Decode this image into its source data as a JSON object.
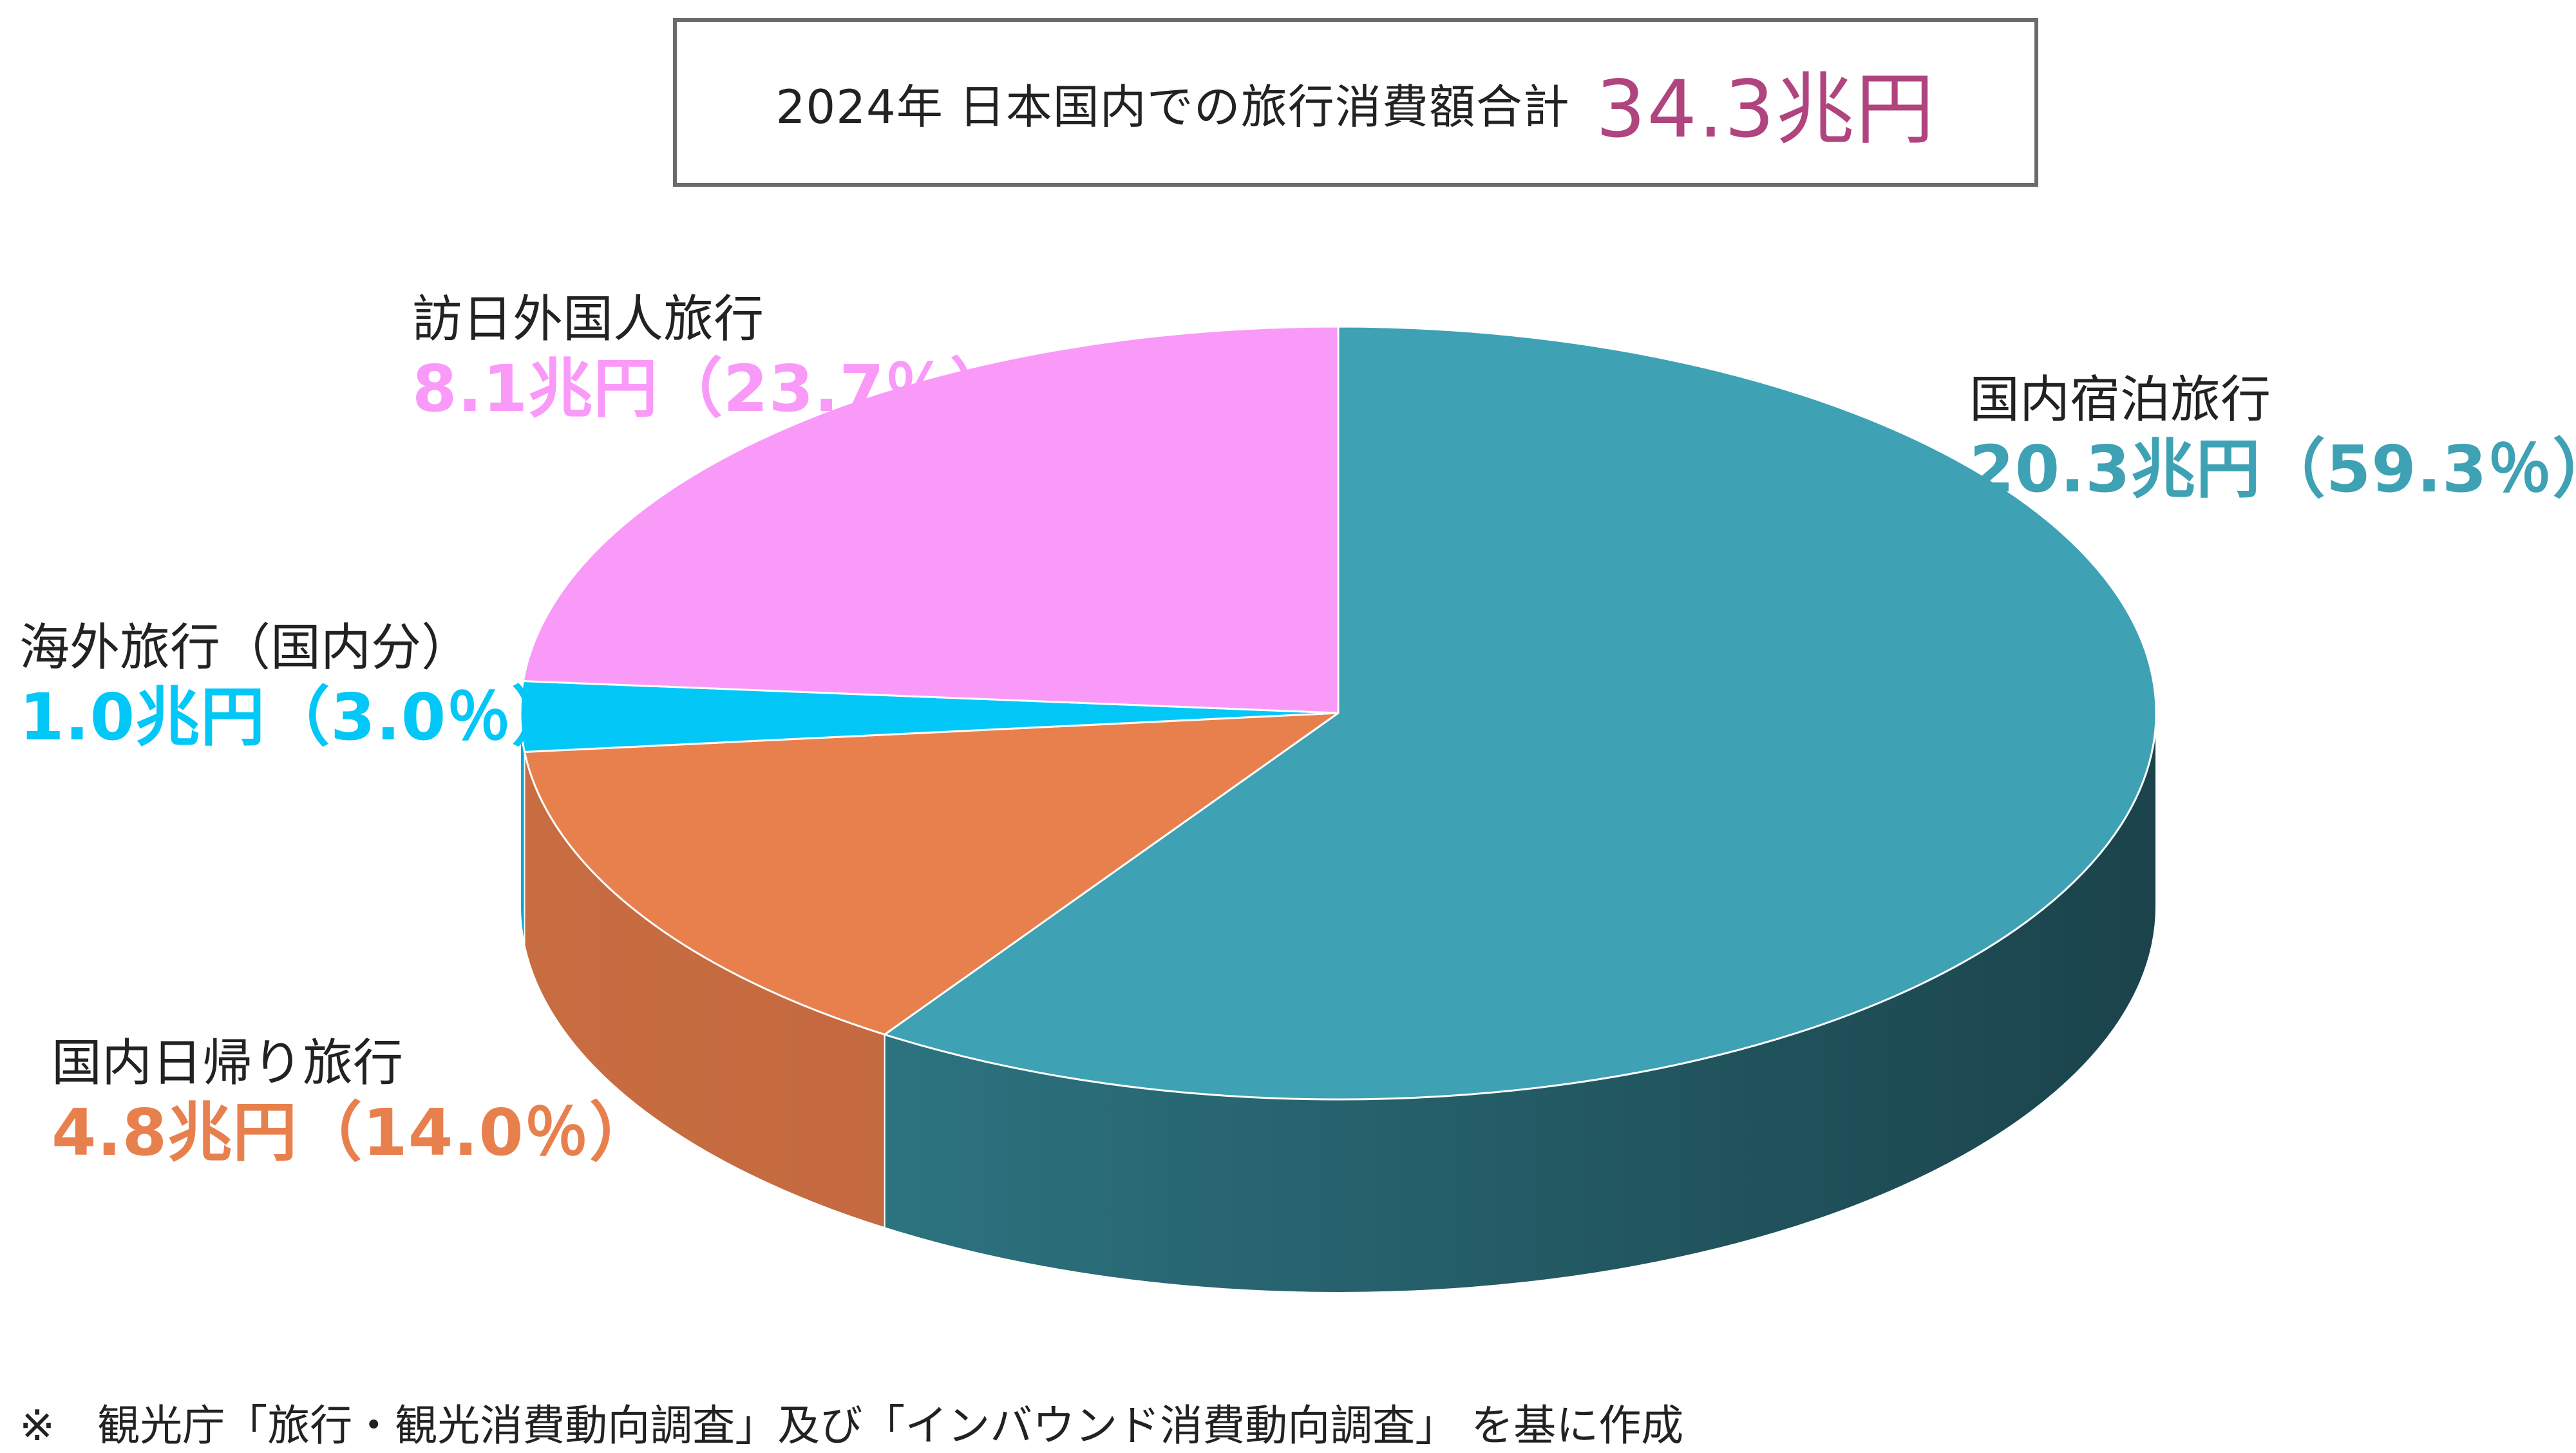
{
  "header": {
    "label": "2024年 日本国内での旅行消費額合計",
    "total": "34.3兆円"
  },
  "chart_data": {
    "type": "pie",
    "style": "3d",
    "unit": "兆円",
    "start_angle_deg": 0,
    "direction": "clockwise",
    "slices": [
      {
        "label": "国内宿泊旅行",
        "value": 20.3,
        "value_text": "20.3兆円（59.3％）",
        "percent": 59.3,
        "color": "#3ea1b4",
        "side_color_dark": "#1b434b",
        "side_color_light": "#31818f"
      },
      {
        "label": "国内日帰り旅行",
        "value": 4.8,
        "value_text": "4.8兆円（14.0％）",
        "percent": 14.0,
        "color": "#e8804e",
        "side_color_dark": "#b85f37",
        "side_color_light": "#c86d42"
      },
      {
        "label": "海外旅行（国内分）",
        "value": 1.0,
        "value_text": "1.0兆円（3.0％）",
        "percent": 3.0,
        "color": "#03c7f6",
        "side_color_dark": "#0295b8",
        "side_color_light": "#02a8d0"
      },
      {
        "label": "訪日外国人旅行",
        "value": 8.1,
        "value_text": "8.1兆円（23.7％）",
        "percent": 23.7,
        "color": "#f99af9",
        "side_color_dark": "#c774c7",
        "side_color_light": "#e08ae0"
      }
    ]
  },
  "source_note": "※　観光庁「旅行・観光消費動向調査」及び「インバウンド消費動向調査」 を基に作成"
}
